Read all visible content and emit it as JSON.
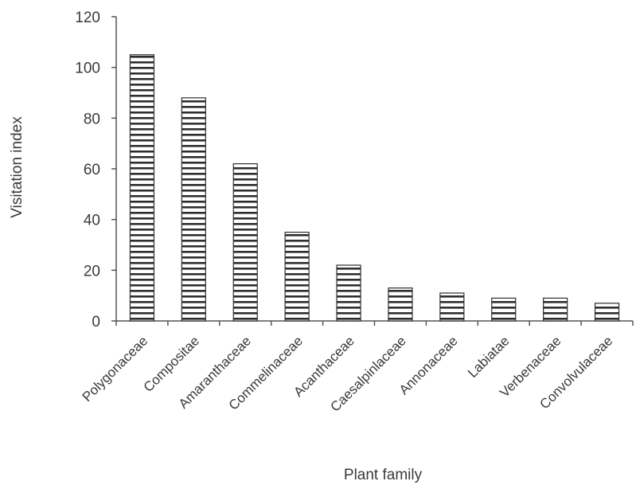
{
  "chart_data": {
    "type": "bar",
    "title": "",
    "xlabel": "Plant family",
    "ylabel": "Visitation index",
    "categories": [
      "Polygonaceae",
      "Compositae",
      "Amaranthaceae",
      "Commelinaceae",
      "Acanthaceae",
      "Caesalpinlaceae",
      "Annonaceae",
      "Labiatae",
      "Verbenaceae",
      "Convolvulaceae"
    ],
    "values": [
      105,
      88,
      62,
      35,
      22,
      13,
      11,
      9,
      9,
      7
    ],
    "ylim": [
      0,
      120
    ],
    "yticks": [
      "0",
      "20",
      "40",
      "60",
      "80",
      "100",
      "120"
    ],
    "grid": false,
    "legend": "none",
    "bar_pattern": "horizontal-stripes",
    "colors": {
      "bar_fill": "#ffffff",
      "bar_stripe": "#2e2e2e",
      "bar_stroke": "#2e2e2e",
      "axis": "#555555",
      "text": "#3a3a3a"
    }
  }
}
